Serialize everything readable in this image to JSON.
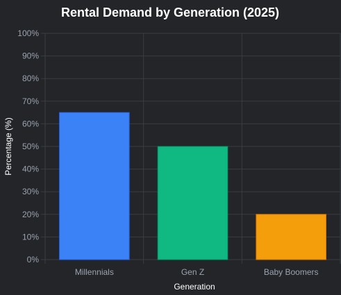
{
  "chart_data": {
    "type": "bar",
    "title": "Rental Demand by Generation (2025)",
    "xlabel": "Generation",
    "ylabel": "Percentage (%)",
    "categories": [
      "Millennials",
      "Gen Z",
      "Baby Boomers"
    ],
    "values": [
      65,
      50,
      20
    ],
    "colors": [
      "#3b82f6",
      "#10b981",
      "#f59e0b"
    ],
    "border_colors": [
      "#2563eb",
      "#059669",
      "#d97706"
    ],
    "ylim": [
      0,
      100
    ],
    "y_ticks": [
      0,
      10,
      20,
      30,
      40,
      50,
      60,
      70,
      80,
      90,
      100
    ],
    "y_tick_labels": [
      "0%",
      "10%",
      "20%",
      "30%",
      "40%",
      "50%",
      "60%",
      "70%",
      "80%",
      "90%",
      "100%"
    ],
    "grid": true,
    "legend": "none"
  },
  "theme": {
    "background": "#232529",
    "grid_color": "#3a3d42",
    "tick_color": "#9ca3af",
    "text_color": "#ffffff"
  }
}
